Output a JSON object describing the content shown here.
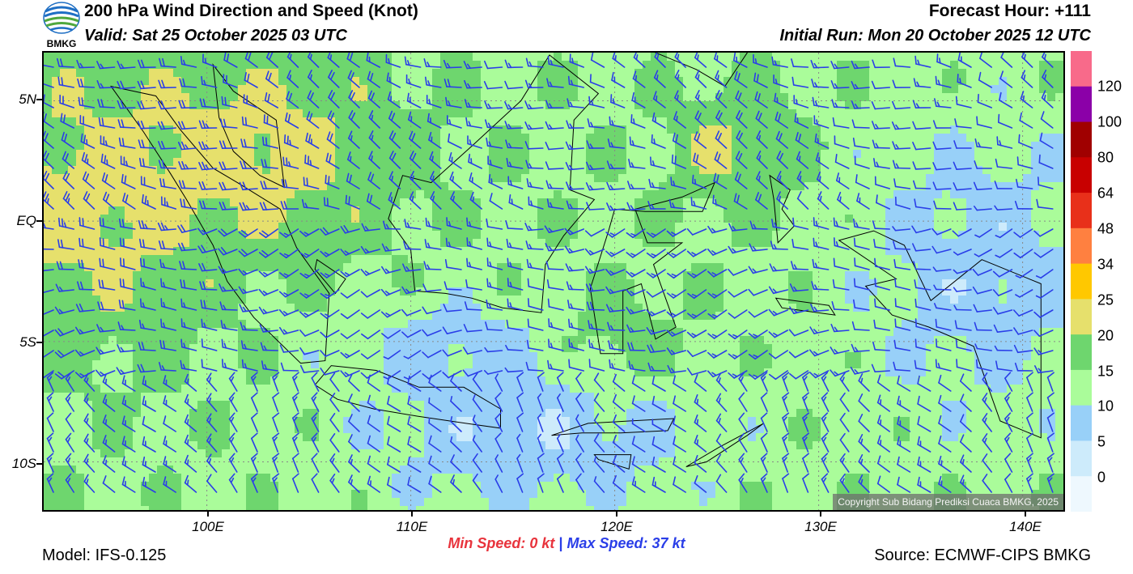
{
  "header": {
    "title": "200 hPa Wind Direction and Speed (Knot)",
    "valid": "Valid: Sat 25 October 2025 03 UTC",
    "forecast_hour": "Forecast Hour: +111",
    "initial_run": "Initial Run: Mon 20 October 2025 12 UTC"
  },
  "logo": {
    "text": "BMKG",
    "icon": "bmkg-logo-icon",
    "colors": [
      "#1f6fc4",
      "#4fa83d",
      "#ffffff"
    ]
  },
  "map": {
    "lat_labels": [
      "5N",
      "EQ",
      "5S",
      "10S"
    ],
    "lon_labels": [
      "100E",
      "110E",
      "120E",
      "130E",
      "140E"
    ],
    "lat_ticks": [
      5,
      0,
      -5,
      -10
    ],
    "lon_ticks": [
      100,
      110,
      120,
      130,
      140
    ],
    "lon_range": [
      92,
      142
    ],
    "lat_range": [
      -12,
      7
    ],
    "copyright": "Copyright Sub Bidang Prediksi Cuaca BMKG, 2025",
    "barb_color": "#2a3ee8",
    "coast_color": "#000000"
  },
  "colorbar": {
    "labels": [
      "120",
      "100",
      "80",
      "64",
      "48",
      "34",
      "25",
      "20",
      "15",
      "10",
      "5",
      "0"
    ],
    "colors": [
      "#f86a8a",
      "#8b00a8",
      "#a00000",
      "#c80000",
      "#e8301a",
      "#ff8040",
      "#ffc800",
      "#e6e06c",
      "#6ed66e",
      "#aafc9a",
      "#98d0f8",
      "#cdebfb",
      "#eef8fe"
    ]
  },
  "footer": {
    "min_speed": "Min Speed:   0 kt",
    "separator": "|",
    "max_speed": "Max Speed:  37 kt",
    "model": "Model: IFS-0.125",
    "source": "Source: ECMWF-CIPS BMKG"
  }
}
